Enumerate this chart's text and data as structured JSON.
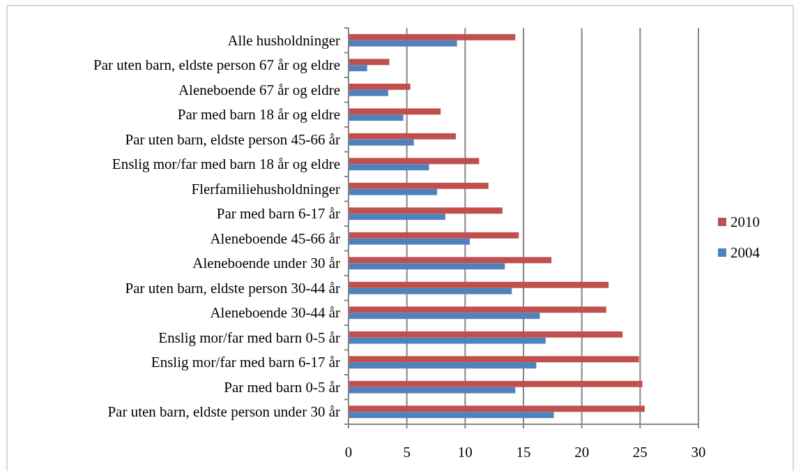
{
  "chart_data": {
    "type": "bar",
    "orientation": "horizontal",
    "categories": [
      "Alle husholdninger",
      "Par uten barn, eldste person 67 år og eldre",
      "Aleneboende 67 år og eldre",
      "Par med barn 18 år og eldre",
      "Par uten barn, eldste person 45-66 år",
      "Enslig mor/far med barn 18 år og eldre",
      "Flerfamiliehusholdninger",
      "Par med barn 6-17 år",
      "Aleneboende 45-66 år",
      "Aleneboende under 30 år",
      "Par uten barn, eldste person 30-44 år",
      "Aleneboende 30-44 år",
      "Enslig mor/far med barn 0-5 år",
      "Enslig mor/far med barn 6-17 år",
      "Par med barn 0-5 år",
      "Par uten barn, eldste person under 30 år"
    ],
    "series": [
      {
        "name": "2010",
        "color": "#c0504d",
        "values": [
          14.3,
          3.5,
          5.3,
          7.9,
          9.2,
          11.2,
          12.0,
          13.2,
          14.6,
          17.4,
          22.3,
          22.1,
          23.5,
          24.9,
          25.2,
          25.4
        ]
      },
      {
        "name": "2004",
        "color": "#4f81bd",
        "values": [
          9.3,
          1.6,
          3.4,
          4.7,
          5.6,
          6.9,
          7.6,
          8.3,
          10.4,
          13.4,
          14.0,
          16.4,
          16.9,
          16.1,
          14.3,
          17.6
        ]
      }
    ],
    "xlim": [
      0,
      30
    ],
    "xticks": [
      0,
      5,
      10,
      15,
      20,
      25,
      30
    ],
    "grid": "x",
    "legend": "right"
  }
}
